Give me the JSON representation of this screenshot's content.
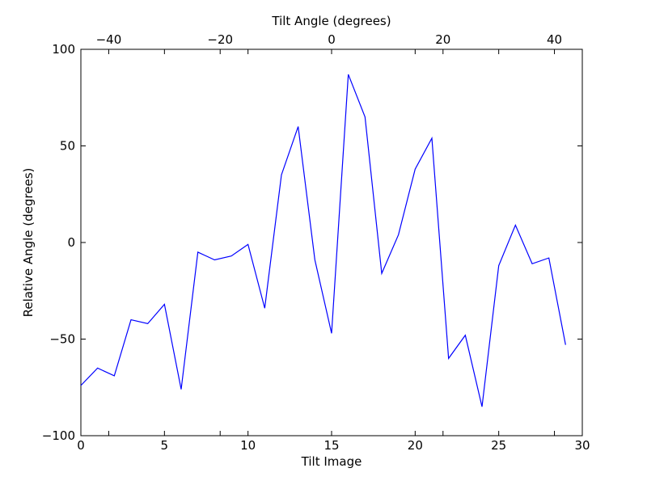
{
  "chart_data": {
    "type": "line",
    "xlabel": "Tilt Image",
    "x2label": "Tilt Angle (degrees)",
    "ylabel": "Relative Angle (degrees)",
    "xlim": [
      0,
      30
    ],
    "x2lim": [
      -45,
      45
    ],
    "ylim": [
      -100,
      100
    ],
    "xticks": [
      0,
      5,
      10,
      15,
      20,
      25,
      30
    ],
    "x2ticks": [
      -40,
      -20,
      0,
      20,
      40
    ],
    "yticks": [
      -100,
      -50,
      0,
      50,
      100
    ],
    "xtick_labels": [
      "0",
      "5",
      "10",
      "15",
      "20",
      "25",
      "30"
    ],
    "x2tick_labels": [
      "−40",
      "−20",
      "0",
      "20",
      "40"
    ],
    "ytick_labels": [
      "−100",
      "−50",
      "0",
      "50",
      "100"
    ],
    "grid": false,
    "series": [
      {
        "color": "#0000ff",
        "x": [
          0,
          1,
          2,
          3,
          4,
          5,
          6,
          7,
          8,
          9,
          10,
          11,
          12,
          13,
          14,
          15,
          16,
          17,
          18,
          19,
          20,
          21,
          22,
          23,
          24,
          25,
          26,
          27,
          28,
          29
        ],
        "y": [
          -74,
          -65,
          -69,
          -40,
          -42,
          -32,
          -76,
          -5,
          -9,
          -7,
          -1,
          -34,
          35,
          60,
          -9,
          -47,
          87,
          65,
          -16,
          4,
          38,
          54,
          -60,
          -48,
          -85,
          -12,
          9,
          -11,
          -8,
          -53
        ]
      }
    ]
  }
}
